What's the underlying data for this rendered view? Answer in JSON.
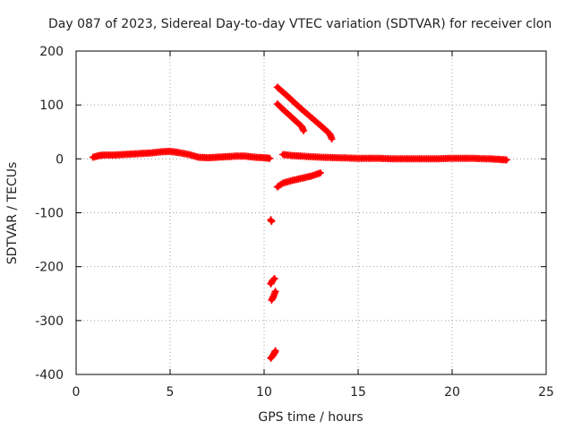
{
  "chart_data": {
    "type": "scatter",
    "title": "Day 087 of 2023, Sidereal Day-to-day VTEC variation (SDTVAR) for receiver clon",
    "xlabel": "GPS time / hours",
    "ylabel": "SDTVAR / TECUs",
    "xlim": [
      0,
      25
    ],
    "ylim": [
      -400,
      200
    ],
    "xticks": [
      0,
      5,
      10,
      15,
      20,
      25
    ],
    "yticks": [
      200,
      100,
      0,
      -100,
      -200,
      -300,
      -400
    ],
    "grid": true,
    "legend": "none",
    "series": [
      {
        "name": "SDTVAR",
        "color": "#ff0000",
        "marker": "plus",
        "segments": [
          {
            "name": "baseline-early",
            "x": [
              0.9,
              1.2,
              1.5,
              2.0,
              2.5,
              3.0,
              3.5,
              4.0,
              4.5,
              5.0,
              5.4,
              6.0,
              6.5,
              7.0,
              7.5,
              8.0,
              8.5,
              9.0,
              9.5,
              10.0,
              10.3
            ],
            "y": [
              3,
              6,
              7,
              7,
              8,
              9,
              10,
              11,
              13,
              14,
              12,
              8,
              3,
              2,
              3,
              4,
              5,
              5,
              3,
              2,
              1
            ]
          },
          {
            "name": "arc-upper",
            "x": [
              10.7,
              11.0,
              11.5,
              12.0,
              12.5,
              13.0,
              13.5,
              13.6
            ],
            "y": [
              133,
              124,
              108,
              92,
              77,
              62,
              46,
              37
            ]
          },
          {
            "name": "arc-middle",
            "x": [
              10.7,
              11.0,
              11.5,
              12.0,
              12.1
            ],
            "y": [
              102,
              92,
              76,
              60,
              52
            ]
          },
          {
            "name": "arc-lower",
            "x": [
              10.7,
              11.0,
              11.5,
              12.0,
              12.5,
              13.0
            ],
            "y": [
              -52,
              -45,
              -40,
              -36,
              -32,
              -26
            ]
          },
          {
            "name": "baseline-late",
            "x": [
              11.0,
              11.5,
              12.0,
              13.0,
              14.0,
              15.0,
              16.0,
              17.0,
              18.0,
              19.0,
              20.0,
              21.0,
              22.0,
              22.5,
              22.9
            ],
            "y": [
              8,
              6,
              5,
              3,
              2,
              1,
              1,
              0,
              0,
              0,
              1,
              1,
              0,
              -1,
              -2
            ]
          },
          {
            "name": "spike-a",
            "x": [
              10.35,
              10.4
            ],
            "y": [
              -113,
              -116
            ]
          },
          {
            "name": "spike-b",
            "x": [
              10.35,
              10.45,
              10.55
            ],
            "y": [
              -232,
              -226,
              -222
            ]
          },
          {
            "name": "spike-c",
            "x": [
              10.4,
              10.5,
              10.6
            ],
            "y": [
              -262,
              -255,
              -246
            ]
          },
          {
            "name": "spike-d",
            "x": [
              10.35,
              10.45,
              10.55,
              10.6
            ],
            "y": [
              -370,
              -366,
              -360,
              -356
            ]
          }
        ]
      }
    ]
  }
}
